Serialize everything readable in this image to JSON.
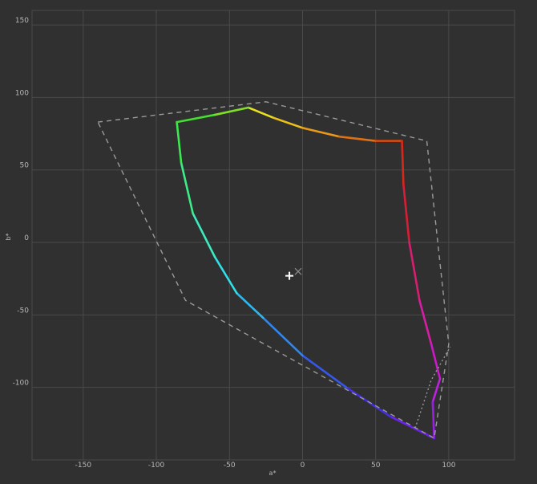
{
  "chart_data": {
    "type": "line",
    "xlabel": "a*",
    "ylabel": "b*",
    "xlim": [
      -185,
      145
    ],
    "ylim": [
      -150,
      160
    ],
    "x_ticks": [
      -150,
      -100,
      -50,
      0,
      50,
      100
    ],
    "y_ticks": [
      150,
      100,
      50,
      0,
      -50,
      -100
    ],
    "grid": true,
    "colors": {
      "background": "#303030",
      "grid": "#4a4a4a",
      "text": "#b8b8b8",
      "reference": "#9a9a9a"
    },
    "series": [
      {
        "style": "gradient",
        "points": [
          {
            "x": -37,
            "y": 93,
            "color": "#e8e020"
          },
          {
            "x": -20,
            "y": 86,
            "color": "#ecc21a"
          },
          {
            "x": 0,
            "y": 79,
            "color": "#e89a18"
          },
          {
            "x": 25,
            "y": 73,
            "color": "#e07014"
          },
          {
            "x": 50,
            "y": 70,
            "color": "#d84a12"
          },
          {
            "x": 68,
            "y": 70,
            "color": "#d82818"
          },
          {
            "x": 69,
            "y": 40,
            "color": "#d81e36"
          },
          {
            "x": 73,
            "y": 0,
            "color": "#d81e70"
          },
          {
            "x": 80,
            "y": -40,
            "color": "#d41ea4"
          },
          {
            "x": 88,
            "y": -70,
            "color": "#cc18c8"
          },
          {
            "x": 94,
            "y": -94,
            "color": "#c020e0"
          },
          {
            "x": 89,
            "y": -110,
            "color": "#9a20e8"
          },
          {
            "x": 90,
            "y": -135,
            "color": "#6a24e8"
          },
          {
            "x": 60,
            "y": -120,
            "color": "#4430e0"
          },
          {
            "x": 30,
            "y": -100,
            "color": "#3458e8"
          },
          {
            "x": 0,
            "y": -78,
            "color": "#2e86ee"
          },
          {
            "x": -27,
            "y": -52,
            "color": "#2cb8f0"
          },
          {
            "x": -45,
            "y": -35,
            "color": "#30e0e8"
          },
          {
            "x": -60,
            "y": -10,
            "color": "#3cecc0"
          },
          {
            "x": -75,
            "y": 20,
            "color": "#3cec88"
          },
          {
            "x": -83,
            "y": 55,
            "color": "#3ce850"
          },
          {
            "x": -86,
            "y": 83,
            "color": "#44e030"
          },
          {
            "x": -60,
            "y": 88,
            "color": "#80e028"
          },
          {
            "x": -37,
            "y": 93,
            "color": "#c0e020"
          }
        ]
      },
      {
        "style": "dashed",
        "points": [
          {
            "x": -140,
            "y": 83
          },
          {
            "x": -25,
            "y": 97
          },
          {
            "x": 85,
            "y": 70
          },
          {
            "x": 100,
            "y": -70
          },
          {
            "x": 90,
            "y": -135
          },
          {
            "x": -80,
            "y": -40
          },
          {
            "x": -140,
            "y": 83
          }
        ]
      },
      {
        "style": "dotted",
        "points": [
          {
            "x": 77,
            "y": -128
          },
          {
            "x": 88,
            "y": -95
          },
          {
            "x": 101,
            "y": -72
          }
        ]
      }
    ],
    "markers": [
      {
        "symbol": "plus",
        "x": -9,
        "y": -23,
        "color": "#ffffff"
      },
      {
        "symbol": "cross",
        "x": -3,
        "y": -20,
        "color": "#8a8a8a"
      }
    ]
  }
}
